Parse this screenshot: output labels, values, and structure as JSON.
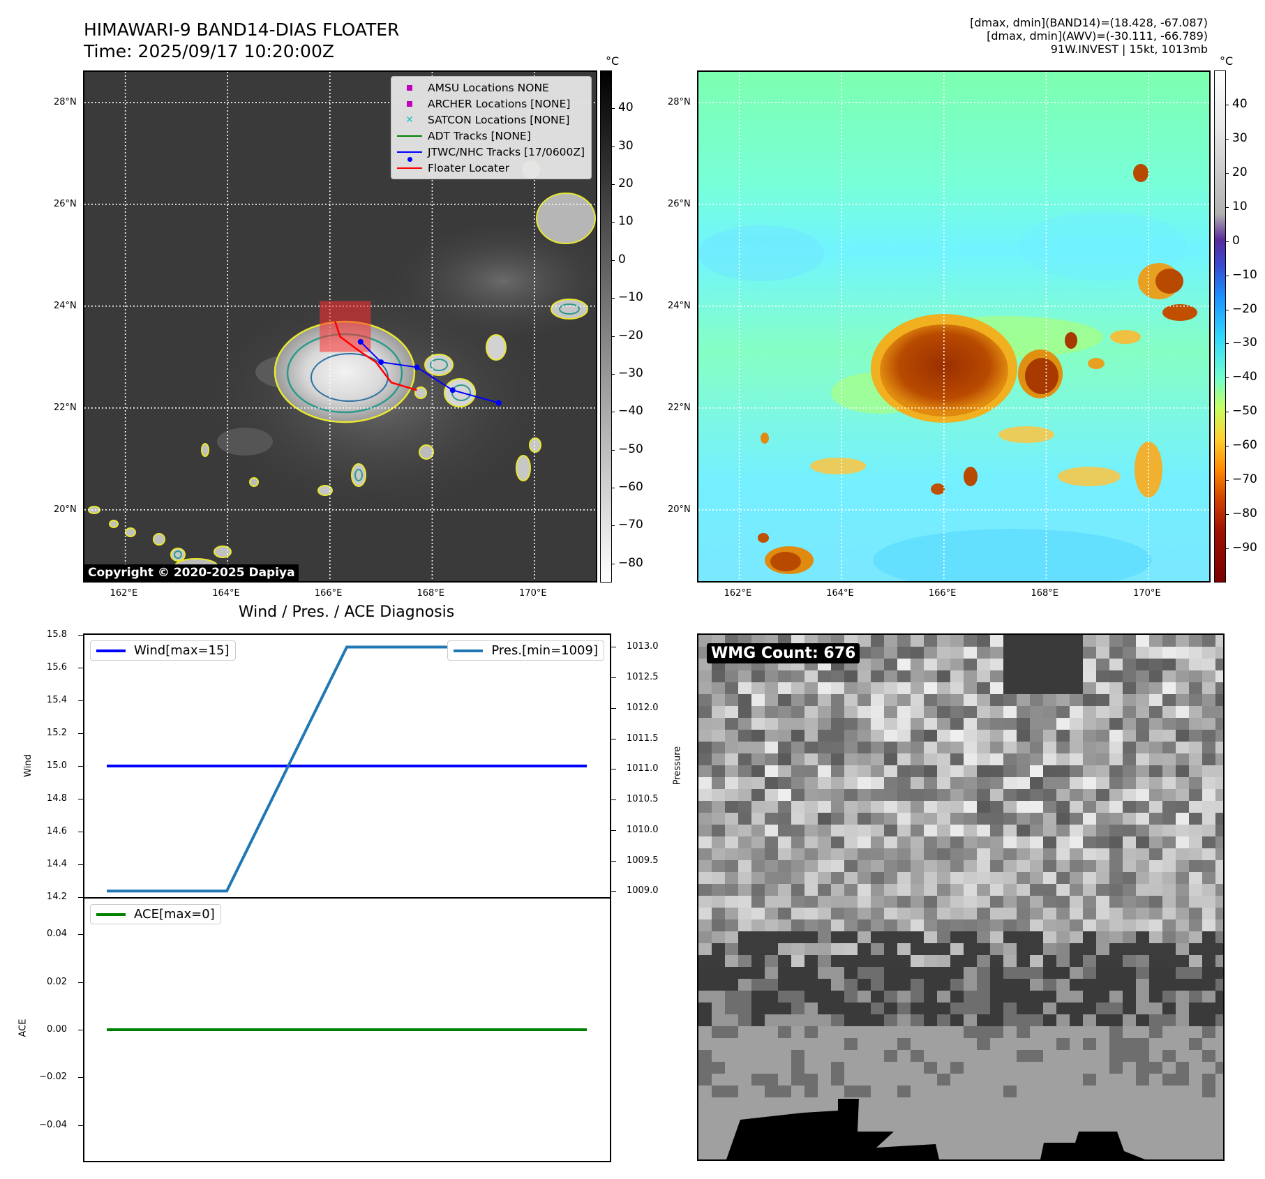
{
  "header": {
    "title_line1": "HIMAWARI-9 BAND14-DIAS FLOATER",
    "title_line2": "Time: 2025/09/17 10:20:00Z",
    "info_line1": "[dmax, dmin](BAND14)=(18.428, -67.087)",
    "info_line2": "[dmax, dmin](AWV)=(-30.111, -66.789)",
    "info_line3": "91W.INVEST | 15kt, 1013mb"
  },
  "map_axes": {
    "lat_labels": [
      "28°N",
      "26°N",
      "24°N",
      "22°N",
      "20°N"
    ],
    "lon_labels": [
      "162°E",
      "164°E",
      "166°E",
      "168°E",
      "170°E"
    ],
    "lat_values": [
      28,
      26,
      24,
      22,
      20
    ],
    "lon_values": [
      162,
      164,
      166,
      168,
      170
    ],
    "lon_range": [
      161.2,
      171.2
    ],
    "lat_range": [
      18.6,
      28.6
    ]
  },
  "ir_colorbar": {
    "unit": "°C",
    "ticks": [
      "40",
      "30",
      "20",
      "10",
      "0",
      "−10",
      "−20",
      "−30",
      "−40",
      "−50",
      "−60",
      "−70",
      "−80"
    ],
    "values": [
      40,
      30,
      20,
      10,
      0,
      -10,
      -20,
      -30,
      -40,
      -50,
      -60,
      -70,
      -80
    ],
    "range": [
      -85,
      50
    ]
  },
  "wv_colorbar": {
    "unit": "°C",
    "ticks": [
      "40",
      "30",
      "20",
      "10",
      "0",
      "−10",
      "−20",
      "−30",
      "−40",
      "−50",
      "−60",
      "−70",
      "−80",
      "−90"
    ],
    "values": [
      40,
      30,
      20,
      10,
      0,
      -10,
      -20,
      -30,
      -40,
      -50,
      -60,
      -70,
      -80,
      -90
    ],
    "range": [
      -100,
      50
    ]
  },
  "map_legend": [
    {
      "label": "AMSU Locations NONE",
      "symbol": "square",
      "color": "#c000c0"
    },
    {
      "label": "ARCHER Locations [NONE]",
      "symbol": "square",
      "color": "#c000c0"
    },
    {
      "label": "SATCON Locations [NONE]",
      "symbol": "x",
      "color": "#20c0c0"
    },
    {
      "label": "ADT Tracks [NONE]",
      "symbol": "line",
      "color": "#008000"
    },
    {
      "label": "JTWC/NHC Tracks [17/0600Z]",
      "symbol": "line-dot",
      "color": "#0000ff"
    },
    {
      "label": "Floater Locater",
      "symbol": "line",
      "color": "#ff0000"
    }
  ],
  "copyright": "Copyright © 2020-2025 Dapiya",
  "tracks": {
    "jtwc": [
      [
        169.3,
        22.1
      ],
      [
        168.4,
        22.35
      ],
      [
        167.7,
        22.8
      ],
      [
        167.0,
        22.9
      ],
      [
        166.6,
        23.3
      ]
    ],
    "floater": [
      [
        167.7,
        22.35
      ],
      [
        167.2,
        22.5
      ],
      [
        166.9,
        22.9
      ],
      [
        166.6,
        23.1
      ],
      [
        166.2,
        23.4
      ],
      [
        166.1,
        23.7
      ]
    ],
    "floater_box": {
      "lon": [
        165.8,
        166.8
      ],
      "lat": [
        23.1,
        24.1
      ]
    }
  },
  "chart_data": [
    {
      "type": "line",
      "title": "Wind / Pres. / ACE Diagnosis",
      "ylabel": "Wind",
      "ylim": [
        14.2,
        15.8
      ],
      "y_ticks": [
        14.2,
        14.4,
        14.6,
        14.8,
        15.0,
        15.2,
        15.4,
        15.6,
        15.8
      ],
      "series": [
        {
          "name": "Wind[max=15]",
          "color": "#0000ff",
          "values": [
            15,
            15,
            15,
            15,
            15
          ]
        }
      ],
      "y2label": "Pressure",
      "y2lim": [
        1008.9,
        1013.2
      ],
      "y2_ticks": [
        1009.0,
        1009.5,
        1010.0,
        1010.5,
        1011.0,
        1011.5,
        1012.0,
        1012.5,
        1013.0
      ],
      "series2": [
        {
          "name": "Pres.[min=1009]",
          "color": "#1f77b4",
          "values": [
            1009,
            1009,
            1013,
            1013,
            1013
          ]
        }
      ],
      "x": [
        0,
        1,
        2,
        3,
        4
      ]
    },
    {
      "type": "line",
      "ylabel": "ACE",
      "ylim": [
        -0.055,
        0.055
      ],
      "y_ticks": [
        -0.04,
        -0.02,
        0.0,
        0.02,
        0.04
      ],
      "series": [
        {
          "name": "ACE[max=0]",
          "color": "#008000",
          "values": [
            0,
            0,
            0,
            0,
            0
          ]
        }
      ],
      "x": [
        0,
        1,
        2,
        3,
        4
      ]
    }
  ],
  "wmg": {
    "label": "WMG Count: 676"
  }
}
